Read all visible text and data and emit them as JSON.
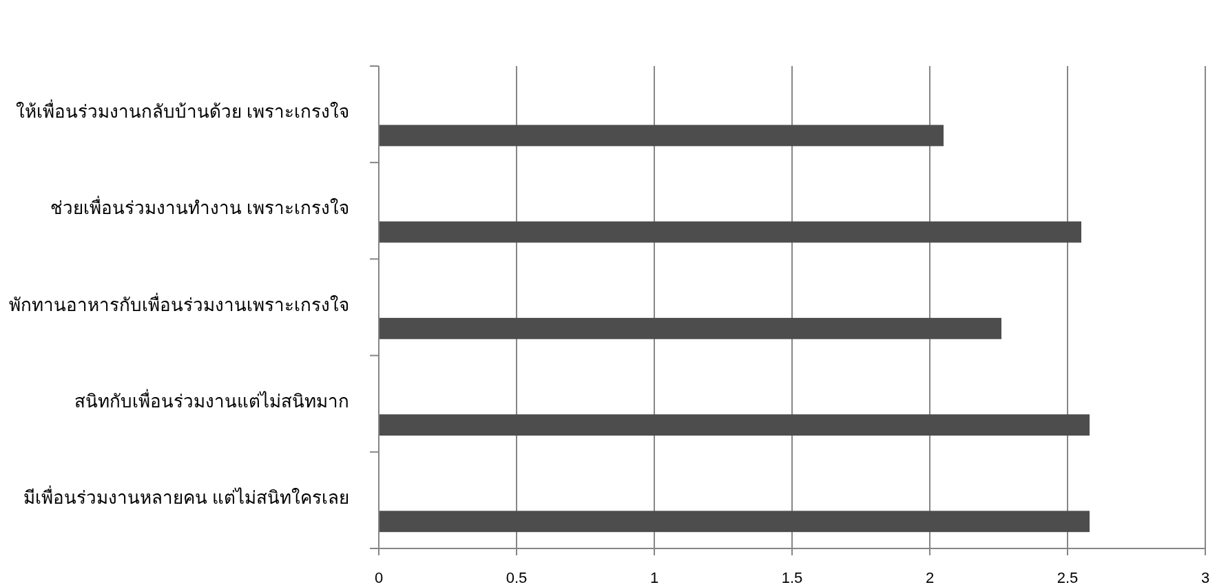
{
  "chart_data": {
    "type": "bar",
    "orientation": "horizontal",
    "categories": [
      "ให้เพื่อนร่วมงานกลับบ้านด้วย เพราะเกรงใจ",
      "ช่วยเพื่อนร่วมงานทำงาน เพราะเกรงใจ",
      "พักทานอาหารกับเพื่อนร่วมงานเพราะเกรงใจ",
      "สนิทกับเพื่อนร่วมงานแต่ไม่สนิทมาก",
      "มีเพื่อนร่วมงานหลายคน แต่ไม่สนิทใครเลย"
    ],
    "values": [
      2.05,
      2.55,
      2.26,
      2.58,
      2.58
    ],
    "color": "#4d4d4d",
    "xlim": [
      0,
      3
    ],
    "xticks": [
      0,
      0.5,
      1,
      1.5,
      2,
      2.5,
      3
    ],
    "grid": "x"
  }
}
